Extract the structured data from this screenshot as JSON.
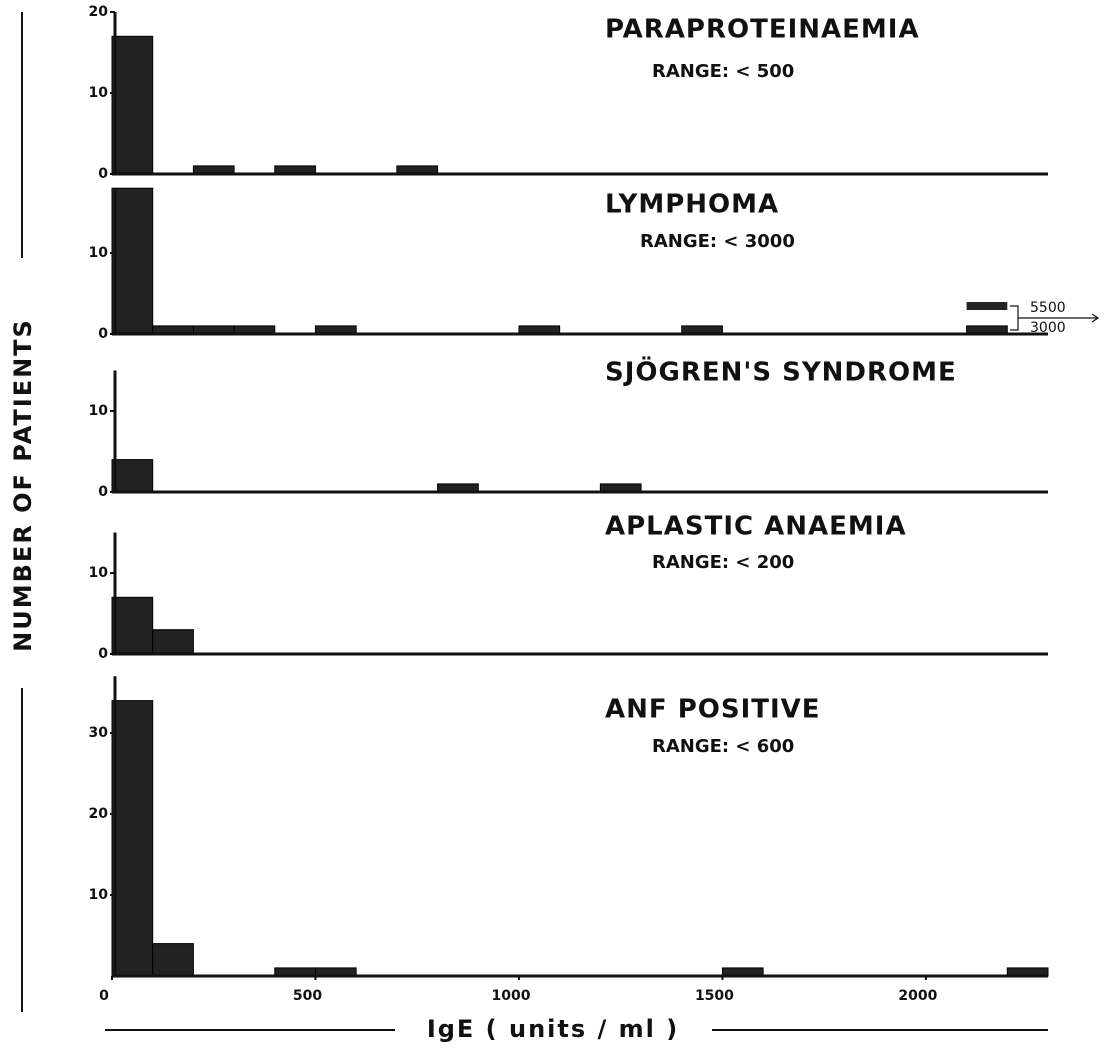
{
  "figure": {
    "ylabel": "NUMBER OF PATIENTS",
    "xlabel": "IgE ( units / ml )"
  },
  "chart_data": [
    {
      "type": "histogram",
      "title": "PARAPROTEINAEMIA",
      "subtitle": "RANGE: < 500",
      "bins": [
        0,
        100,
        200,
        300,
        400,
        500,
        600,
        700,
        800,
        900,
        1000,
        1100,
        1200,
        1300,
        1400,
        1500,
        1600,
        1700,
        1800,
        1900,
        2000,
        2100,
        2200,
        2300
      ],
      "counts": [
        17,
        0,
        1,
        0,
        1,
        0,
        0,
        1,
        0,
        0,
        0,
        0,
        0,
        0,
        0,
        0,
        0,
        0,
        0,
        0,
        0,
        0,
        0
      ],
      "xlim": [
        0,
        2300
      ],
      "ylim": [
        0,
        20
      ],
      "yticks": [
        0,
        10,
        20
      ],
      "color": "#222222"
    },
    {
      "type": "histogram",
      "title": "LYMPHOMA",
      "subtitle": "RANGE: < 3000",
      "bins": [
        0,
        100,
        200,
        300,
        400,
        500,
        600,
        700,
        800,
        900,
        1000,
        1100,
        1200,
        1300,
        1400,
        1500,
        1600,
        1700,
        1800,
        1900,
        2000,
        2100,
        2200,
        2300
      ],
      "counts": [
        18,
        1,
        1,
        1,
        0,
        1,
        0,
        0,
        0,
        0,
        1,
        0,
        0,
        0,
        1,
        0,
        0,
        0,
        0,
        0,
        0,
        1,
        0
      ],
      "annotations": [
        "5500",
        "3000"
      ],
      "xlim": [
        0,
        2300
      ],
      "ylim": [
        0,
        18
      ],
      "yticks": [
        0,
        10
      ],
      "color": "#222222"
    },
    {
      "type": "histogram",
      "title": "SJÖGREN'S  SYNDROME",
      "bins": [
        0,
        100,
        200,
        300,
        400,
        500,
        600,
        700,
        800,
        900,
        1000,
        1100,
        1200,
        1300,
        1400,
        1500,
        1600,
        1700,
        1800,
        1900,
        2000,
        2100,
        2200,
        2300
      ],
      "counts": [
        4,
        0,
        0,
        0,
        0,
        0,
        0,
        0,
        1,
        0,
        0,
        0,
        1,
        0,
        0,
        0,
        0,
        0,
        0,
        0,
        0,
        0,
        0
      ],
      "xlim": [
        0,
        2300
      ],
      "ylim": [
        0,
        15
      ],
      "yticks": [
        0,
        10
      ],
      "color": "#222222"
    },
    {
      "type": "histogram",
      "title": "APLASTIC  ANAEMIA",
      "subtitle": "RANGE: < 200",
      "bins": [
        0,
        100,
        200,
        300,
        400,
        500,
        600,
        700,
        800,
        900,
        1000,
        1100,
        1200,
        1300,
        1400,
        1500,
        1600,
        1700,
        1800,
        1900,
        2000,
        2100,
        2200,
        2300
      ],
      "counts": [
        7,
        3,
        0,
        0,
        0,
        0,
        0,
        0,
        0,
        0,
        0,
        0,
        0,
        0,
        0,
        0,
        0,
        0,
        0,
        0,
        0,
        0,
        0
      ],
      "xlim": [
        0,
        2300
      ],
      "ylim": [
        0,
        15
      ],
      "yticks": [
        0,
        10
      ],
      "color": "#222222"
    },
    {
      "type": "histogram",
      "title": "ANF  POSITIVE",
      "subtitle": "RANGE: < 600",
      "bins": [
        0,
        100,
        200,
        300,
        400,
        500,
        600,
        700,
        800,
        900,
        1000,
        1100,
        1200,
        1300,
        1400,
        1500,
        1600,
        1700,
        1800,
        1900,
        2000,
        2100,
        2200,
        2300
      ],
      "counts": [
        34,
        4,
        0,
        0,
        1,
        1,
        0,
        0,
        0,
        0,
        0,
        0,
        0,
        0,
        0,
        1,
        0,
        0,
        0,
        0,
        0,
        0,
        1
      ],
      "xlim": [
        0,
        2300
      ],
      "ylim": [
        0,
        37
      ],
      "yticks": [
        10,
        20,
        30
      ],
      "xticks": [
        0,
        500,
        1000,
        1500,
        2000
      ],
      "color": "#222222"
    }
  ]
}
